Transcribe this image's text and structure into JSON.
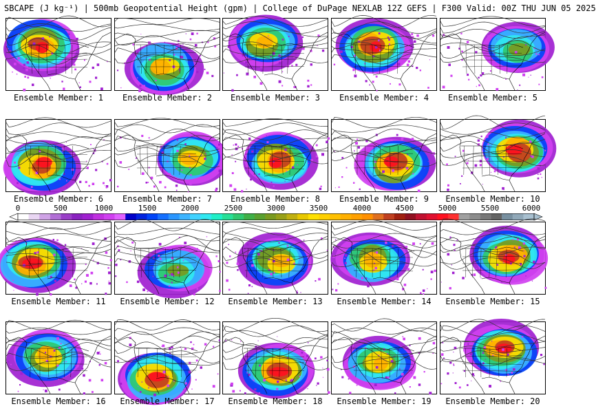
{
  "header": {
    "title": "SBCAPE (J kg⁻¹) | 500mb Geopotential Height (gpm) | College of DuPage NEXLAB 12Z GEFS | F300 Valid: 00Z THU JUN 05 2025"
  },
  "colorbar": {
    "tick_labels": [
      "0",
      "500",
      "1000",
      "1500",
      "2000",
      "2500",
      "3000",
      "3500",
      "4000",
      "4500",
      "5000",
      "5500",
      "6000"
    ],
    "colors": [
      "#ffffff",
      "#e9d6f3",
      "#cfa3e6",
      "#b26fd6",
      "#9a3fc8",
      "#8a22c0",
      "#a020d0",
      "#c030e0",
      "#d040f0",
      "#e060ff",
      "#0000c8",
      "#0022e0",
      "#0044f8",
      "#1570ff",
      "#2a96ff",
      "#3cb4ff",
      "#40d2ff",
      "#30e8f0",
      "#20f0c8",
      "#28e098",
      "#30c870",
      "#40b048",
      "#5aa030",
      "#7a9a20",
      "#98a018",
      "#c0b010",
      "#e8c800",
      "#ffe000",
      "#ffd000",
      "#ffc000",
      "#ffb000",
      "#ffa000",
      "#ff9000",
      "#e07020",
      "#c04020",
      "#a02010",
      "#901020",
      "#c01030",
      "#e01030",
      "#ff1020",
      "#ff3030",
      "#a0a0a0",
      "#8c8c8c",
      "#787878",
      "#646464",
      "#7890a0",
      "#90a8b8",
      "#a8c0d0"
    ]
  },
  "members": [
    {
      "caption": "Ensemble Member: 1"
    },
    {
      "caption": "Ensemble Member: 2"
    },
    {
      "caption": "Ensemble Member: 3"
    },
    {
      "caption": "Ensemble Member: 4"
    },
    {
      "caption": "Ensemble Member: 5"
    },
    {
      "caption": "Ensemble Member: 6"
    },
    {
      "caption": "Ensemble Member: 7"
    },
    {
      "caption": "Ensemble Member: 8"
    },
    {
      "caption": "Ensemble Member: 9"
    },
    {
      "caption": "Ensemble Member: 10"
    },
    {
      "caption": "Ensemble Member: 11"
    },
    {
      "caption": "Ensemble Member: 12"
    },
    {
      "caption": "Ensemble Member: 13"
    },
    {
      "caption": "Ensemble Member: 14"
    },
    {
      "caption": "Ensemble Member: 15"
    },
    {
      "caption": "Ensemble Member: 16"
    },
    {
      "caption": "Ensemble Member: 17"
    },
    {
      "caption": "Ensemble Member: 18"
    },
    {
      "caption": "Ensemble Member: 19"
    },
    {
      "caption": "Ensemble Member: 20"
    }
  ]
}
